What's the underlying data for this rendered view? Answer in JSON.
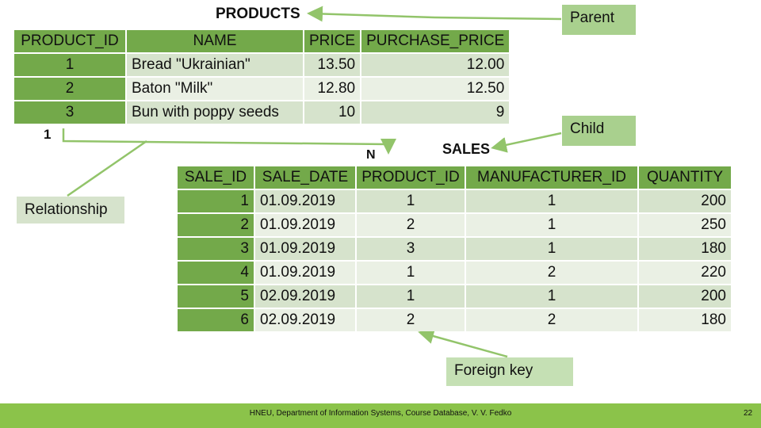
{
  "products": {
    "title": "PRODUCTS",
    "headers": [
      "PRODUCT_ID",
      "NAME",
      "PRICE",
      "PURCHASE_PRICE"
    ],
    "rows": [
      [
        "1",
        "Bread \"Ukrainian\"",
        "13.50",
        "12.00"
      ],
      [
        "2",
        "Baton \"Milk\"",
        "12.80",
        "12.50"
      ],
      [
        "3",
        "Bun with poppy seeds",
        "10",
        "9"
      ]
    ]
  },
  "sales": {
    "title": "SALES",
    "headers": [
      "SALE_ID",
      "SALE_DATE",
      "PRODUCT_ID",
      "MANUFACTURER_ID",
      "QUANTITY"
    ],
    "rows": [
      [
        "1",
        "01.09.2019",
        "1",
        "1",
        "200"
      ],
      [
        "2",
        "01.09.2019",
        "2",
        "1",
        "250"
      ],
      [
        "3",
        "01.09.2019",
        "3",
        "1",
        "180"
      ],
      [
        "4",
        "01.09.2019",
        "1",
        "2",
        "220"
      ],
      [
        "5",
        "02.09.2019",
        "1",
        "1",
        "200"
      ],
      [
        "6",
        "02.09.2019",
        "2",
        "2",
        "180"
      ]
    ]
  },
  "annotations": {
    "parent": "Parent",
    "child": "Child",
    "relationship": "Relationship",
    "foreign_key": "Foreign key",
    "one": "1",
    "many": "N"
  },
  "footer": {
    "text": "HNEU, Department of Information Systems, Course Database, V. V. Fedko",
    "page": "22"
  },
  "colors": {
    "header_green": "#73a94a",
    "row_mid": "#d6e3cc",
    "row_light": "#eaf0e4",
    "footer_green": "#8bc34a",
    "arrow_green": "#92c46a"
  }
}
